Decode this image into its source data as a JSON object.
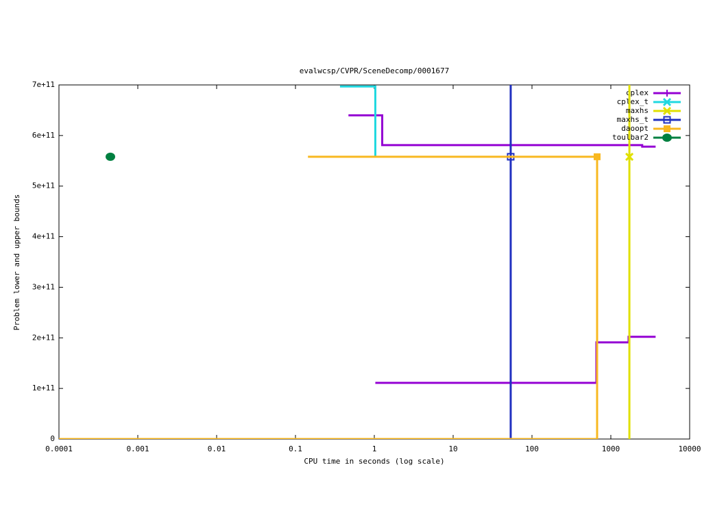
{
  "chart_data": {
    "type": "step",
    "title": "evalwcsp/CVPR/SceneDecomp/0001677",
    "xlabel": "CPU time in seconds (log scale)",
    "ylabel": "Problem lower and upper bounds",
    "xscale": "log",
    "xlim": [
      0.0001,
      10000
    ],
    "xticks": [
      0.0001,
      0.001,
      0.01,
      0.1,
      1,
      10,
      100,
      1000,
      10000
    ],
    "ylim": [
      0,
      700000000000
    ],
    "yticks": [
      0,
      {
        "value": 100000000000,
        "label": "1e+11"
      },
      {
        "value": 200000000000,
        "label": "2e+11"
      },
      {
        "value": 300000000000,
        "label": "3e+11"
      },
      {
        "value": 400000000000,
        "label": "4e+11"
      },
      {
        "value": 500000000000,
        "label": "5e+11"
      },
      {
        "value": 600000000000,
        "label": "6e+11"
      },
      {
        "value": 700000000000,
        "label": "7e+11"
      }
    ],
    "legend": "top-right",
    "series": [
      {
        "name": "cplex",
        "color": "#9400d3",
        "marker": "plus",
        "x": [
          0.47,
          1.26,
          2500,
          3700,
          null,
          1.03,
          656,
          1680,
          3700
        ],
        "values": [
          640000000000,
          581000000000,
          578000000000,
          578000000000,
          null,
          111000000000,
          191000000000,
          202000000000,
          202000000000
        ]
      },
      {
        "name": "cplex_t",
        "color": "#20d8e0",
        "marker": "x",
        "x": [
          0.367,
          1.03
        ],
        "values": [
          697000000000,
          558000000000
        ]
      },
      {
        "name": "maxhs",
        "color": "#e0e000",
        "marker": "x",
        "x": [
          1720,
          1720
        ],
        "values": [
          0,
          700000000000
        ],
        "point_x": [
          1720
        ],
        "point_values": [
          558000000000
        ]
      },
      {
        "name": "maxhs_t",
        "color": "#2030c0",
        "marker": "square-open",
        "x": [
          53.7,
          53.7
        ],
        "values": [
          0,
          700000000000
        ],
        "point_x": [
          53.7
        ],
        "point_values": [
          558000000000
        ]
      },
      {
        "name": "daoopt",
        "color": "#f8b820",
        "marker": "square",
        "x": [
          0.144,
          670,
          null,
          0.0001,
          670
        ],
        "values": [
          558000000000,
          558000000000,
          null,
          0,
          558000000000
        ],
        "point_x": [
          670
        ],
        "point_values": [
          558000000000
        ]
      },
      {
        "name": "toulbar2",
        "color": "#008040",
        "marker": "circle",
        "x": [
          0.000449
        ],
        "values": [
          558000000000
        ],
        "point_x": [
          0.000449
        ],
        "point_values": [
          558000000000
        ]
      }
    ]
  }
}
